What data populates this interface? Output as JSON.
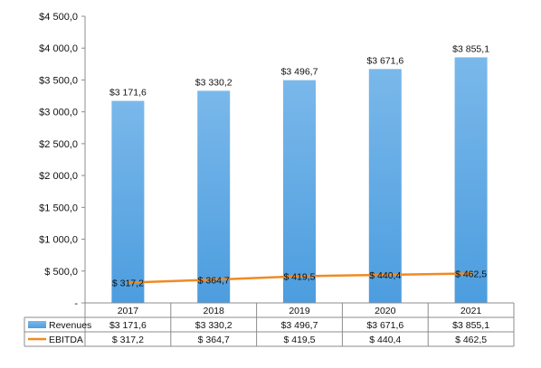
{
  "chart_data": {
    "type": "bar",
    "categories": [
      "2017",
      "2018",
      "2019",
      "2020",
      "2021"
    ],
    "ylim": [
      0,
      4500
    ],
    "y_ticks": [
      {
        "value": 0,
        "label": "-"
      },
      {
        "value": 500,
        "label": "$ 500,0"
      },
      {
        "value": 1000,
        "label": "$1 000,0"
      },
      {
        "value": 1500,
        "label": "$1 500,0"
      },
      {
        "value": 2000,
        "label": "$2 000,0"
      },
      {
        "value": 2500,
        "label": "$2 500,0"
      },
      {
        "value": 3000,
        "label": "$3 000,0"
      },
      {
        "value": 3500,
        "label": "$3 500,0"
      },
      {
        "value": 4000,
        "label": "$4 000,0"
      },
      {
        "value": 4500,
        "label": "$4 500,0"
      }
    ],
    "grid": false,
    "legend_placement": "data-table-left",
    "series": [
      {
        "name": "Revenues",
        "type": "bar",
        "color": "#5aa4e3",
        "values": [
          3171.6,
          3330.2,
          3496.7,
          3671.6,
          3855.1
        ],
        "data_labels": [
          "$3 171,6",
          "$3 330,2",
          "$3 496,7",
          "$3 671,6",
          "$3 855,1"
        ],
        "table_values": [
          "$3 171,6",
          "$3 330,2",
          "$3 496,7",
          "$3 671,6",
          "$3 855,1"
        ]
      },
      {
        "name": "EBITDA",
        "type": "line",
        "color": "#f08a24",
        "values": [
          317.2,
          364.7,
          419.5,
          440.4,
          462.5
        ],
        "data_labels": [
          "$ 317,2",
          "$ 364,7",
          "$ 419,5",
          "$ 440,4",
          "$ 462,5"
        ],
        "table_values": [
          "$ 317,2",
          "$ 364,7",
          "$ 419,5",
          "$ 440,4",
          "$ 462,5"
        ]
      }
    ]
  }
}
